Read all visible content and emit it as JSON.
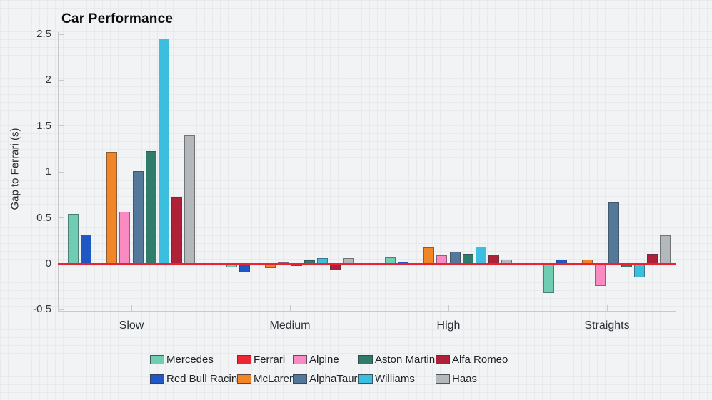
{
  "chart_data": {
    "type": "bar",
    "title": "Car Performance",
    "xlabel": "",
    "ylabel": "Gap to Ferrari (s)",
    "categories": [
      "Slow",
      "Medium",
      "High",
      "Straights"
    ],
    "series": [
      {
        "name": "Mercedes",
        "color": "#6ecdb2",
        "values": [
          0.54,
          -0.04,
          0.07,
          -0.32
        ]
      },
      {
        "name": "Red Bull Racing",
        "color": "#1f57c5",
        "values": [
          0.32,
          -0.09,
          0.02,
          0.05
        ]
      },
      {
        "name": "Ferrari",
        "color": "#ee2533",
        "values": [
          0.0,
          0.0,
          0.0,
          0.0
        ]
      },
      {
        "name": "McLaren",
        "color": "#f28627",
        "values": [
          1.22,
          -0.05,
          0.18,
          0.05
        ]
      },
      {
        "name": "Alpine",
        "color": "#f98bc2",
        "values": [
          0.57,
          0.01,
          0.09,
          -0.24
        ]
      },
      {
        "name": "AlphaTauri",
        "color": "#53789a",
        "values": [
          1.01,
          -0.02,
          0.13,
          0.67
        ]
      },
      {
        "name": "Aston Martin",
        "color": "#2e7c69",
        "values": [
          1.23,
          0.04,
          0.11,
          -0.04
        ]
      },
      {
        "name": "Williams",
        "color": "#3cbfde",
        "values": [
          2.45,
          0.06,
          0.19,
          -0.15
        ]
      },
      {
        "name": "Alfa Romeo",
        "color": "#ae2139",
        "values": [
          0.73,
          -0.07,
          0.1,
          0.11
        ]
      },
      {
        "name": "Haas",
        "color": "#b4b8bb",
        "values": [
          1.4,
          0.06,
          0.05,
          0.31
        ]
      }
    ],
    "yticks": [
      -0.5,
      0,
      0.5,
      1,
      1.5,
      2,
      2.5
    ],
    "ytick_labels": [
      "-0.5",
      "0",
      "0.5",
      "1",
      "1.5",
      "2",
      "2.5"
    ],
    "ylim": [
      -0.55,
      2.55
    ],
    "zero_line_color": "#ec2131",
    "grid": "off",
    "legend_position": "bottom",
    "legend_rows": [
      [
        "Mercedes",
        "Ferrari",
        "Alpine",
        "Aston Martin",
        "Alfa Romeo"
      ],
      [
        "Red Bull Racing",
        "McLaren",
        "AlphaTauri",
        "Williams",
        "Haas"
      ]
    ]
  }
}
